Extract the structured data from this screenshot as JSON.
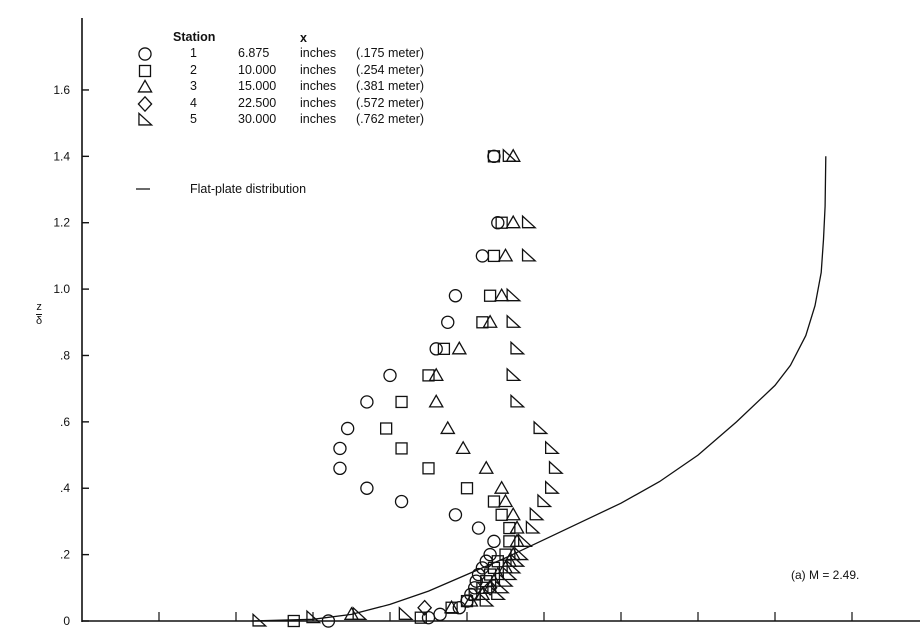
{
  "chart_data": {
    "type": "scatter",
    "title": "",
    "xlabel": "",
    "ylabel_num": "z",
    "ylabel_den": "δ",
    "ylim": [
      0,
      1.6
    ],
    "yticks": [
      "0",
      ".2",
      ".4",
      ".6",
      ".8",
      "1.0",
      "1.2",
      "1.4",
      "1.6"
    ],
    "xlim": [
      0,
      10
    ],
    "grid": false,
    "legend_position": "top-left",
    "legend": {
      "header_station": "Station",
      "header_x": "x",
      "entries": [
        {
          "station": "1",
          "x": "6.875",
          "units": "inches",
          "metric": "(.175  meter)",
          "marker": "circle"
        },
        {
          "station": "2",
          "x": "10.000",
          "units": "inches",
          "metric": "(.254  meter)",
          "marker": "square"
        },
        {
          "station": "3",
          "x": "15.000",
          "units": "inches",
          "metric": "(.381  meter)",
          "marker": "triangle"
        },
        {
          "station": "4",
          "x": "22.500",
          "units": "inches",
          "metric": "(.572  meter)",
          "marker": "diamond"
        },
        {
          "station": "5",
          "x": "30.000",
          "units": "inches",
          "metric": "(.762  meter)",
          "marker": "right-triangle"
        }
      ],
      "line_label": "Flat-plate distribution"
    },
    "annotation": "(a) M = 2.49.",
    "series": [
      {
        "station": "1",
        "marker": "circle",
        "points": [
          [
            3.2,
            0
          ],
          [
            4.5,
            0.01
          ],
          [
            4.65,
            0.02
          ],
          [
            4.9,
            0.04
          ],
          [
            5.0,
            0.06
          ],
          [
            5.05,
            0.08
          ],
          [
            5.1,
            0.1
          ],
          [
            5.12,
            0.12
          ],
          [
            5.15,
            0.14
          ],
          [
            5.2,
            0.16
          ],
          [
            5.25,
            0.18
          ],
          [
            5.3,
            0.2
          ],
          [
            5.35,
            0.24
          ],
          [
            5.15,
            0.28
          ],
          [
            4.85,
            0.32
          ],
          [
            4.15,
            0.36
          ],
          [
            3.7,
            0.4
          ],
          [
            3.35,
            0.46
          ],
          [
            3.35,
            0.52
          ],
          [
            3.45,
            0.58
          ],
          [
            3.7,
            0.66
          ],
          [
            4.0,
            0.74
          ],
          [
            4.6,
            0.82
          ],
          [
            4.75,
            0.9
          ],
          [
            4.85,
            0.98
          ],
          [
            5.2,
            1.1
          ],
          [
            5.4,
            1.2
          ],
          [
            5.35,
            1.4
          ]
        ]
      },
      {
        "station": "2",
        "marker": "square",
        "points": [
          [
            2.75,
            0
          ],
          [
            4.4,
            0.01
          ],
          [
            4.8,
            0.04
          ],
          [
            5.0,
            0.06
          ],
          [
            5.1,
            0.08
          ],
          [
            5.2,
            0.1
          ],
          [
            5.25,
            0.12
          ],
          [
            5.3,
            0.14
          ],
          [
            5.35,
            0.16
          ],
          [
            5.4,
            0.18
          ],
          [
            5.5,
            0.2
          ],
          [
            5.55,
            0.24
          ],
          [
            5.55,
            0.28
          ],
          [
            5.45,
            0.32
          ],
          [
            5.35,
            0.36
          ],
          [
            5.0,
            0.4
          ],
          [
            4.5,
            0.46
          ],
          [
            4.15,
            0.52
          ],
          [
            3.95,
            0.58
          ],
          [
            4.15,
            0.66
          ],
          [
            4.5,
            0.74
          ],
          [
            4.7,
            0.82
          ],
          [
            5.2,
            0.9
          ],
          [
            5.3,
            0.98
          ],
          [
            5.35,
            1.1
          ],
          [
            5.45,
            1.2
          ],
          [
            5.35,
            1.4
          ]
        ]
      },
      {
        "station": "3",
        "marker": "triangle",
        "points": [
          [
            3.5,
            0.02
          ],
          [
            4.8,
            0.04
          ],
          [
            5.05,
            0.06
          ],
          [
            5.2,
            0.08
          ],
          [
            5.3,
            0.1
          ],
          [
            5.35,
            0.12
          ],
          [
            5.4,
            0.14
          ],
          [
            5.5,
            0.16
          ],
          [
            5.55,
            0.18
          ],
          [
            5.6,
            0.2
          ],
          [
            5.65,
            0.24
          ],
          [
            5.65,
            0.28
          ],
          [
            5.6,
            0.32
          ],
          [
            5.5,
            0.36
          ],
          [
            5.45,
            0.4
          ],
          [
            5.25,
            0.46
          ],
          [
            4.95,
            0.52
          ],
          [
            4.75,
            0.58
          ],
          [
            4.6,
            0.66
          ],
          [
            4.6,
            0.74
          ],
          [
            4.9,
            0.82
          ],
          [
            5.3,
            0.9
          ],
          [
            5.45,
            0.98
          ],
          [
            5.5,
            1.1
          ],
          [
            5.6,
            1.2
          ],
          [
            5.6,
            1.4
          ]
        ]
      },
      {
        "station": "4",
        "marker": "diamond",
        "points": [
          [
            4.45,
            0.04
          ],
          [
            5.3,
            0.1
          ]
        ]
      },
      {
        "station": "5",
        "marker": "right-triangle",
        "points": [
          [
            2.3,
            0
          ],
          [
            3.0,
            0.01
          ],
          [
            3.6,
            0.02
          ],
          [
            4.2,
            0.02
          ],
          [
            5.25,
            0.06
          ],
          [
            5.4,
            0.08
          ],
          [
            5.45,
            0.1
          ],
          [
            5.5,
            0.12
          ],
          [
            5.55,
            0.14
          ],
          [
            5.6,
            0.16
          ],
          [
            5.65,
            0.18
          ],
          [
            5.7,
            0.2
          ],
          [
            5.75,
            0.24
          ],
          [
            5.85,
            0.28
          ],
          [
            5.9,
            0.32
          ],
          [
            6.0,
            0.36
          ],
          [
            6.1,
            0.4
          ],
          [
            6.15,
            0.46
          ],
          [
            6.1,
            0.52
          ],
          [
            5.95,
            0.58
          ],
          [
            5.65,
            0.66
          ],
          [
            5.6,
            0.74
          ],
          [
            5.65,
            0.82
          ],
          [
            5.6,
            0.9
          ],
          [
            5.6,
            0.98
          ],
          [
            5.8,
            1.1
          ],
          [
            5.8,
            1.2
          ],
          [
            5.55,
            1.4
          ]
        ]
      }
    ],
    "flat_plate_distribution": [
      [
        2.2,
        0
      ],
      [
        3.0,
        0.005
      ],
      [
        3.5,
        0.02
      ],
      [
        4.0,
        0.05
      ],
      [
        4.5,
        0.09
      ],
      [
        5.0,
        0.14
      ],
      [
        5.5,
        0.19
      ],
      [
        6.0,
        0.245
      ],
      [
        6.5,
        0.3
      ],
      [
        7.0,
        0.355
      ],
      [
        7.5,
        0.42
      ],
      [
        8.0,
        0.5
      ],
      [
        8.5,
        0.6
      ],
      [
        9.0,
        0.71
      ],
      [
        9.2,
        0.77
      ],
      [
        9.4,
        0.86
      ],
      [
        9.52,
        0.95
      ],
      [
        9.6,
        1.05
      ],
      [
        9.63,
        1.15
      ],
      [
        9.65,
        1.25
      ],
      [
        9.66,
        1.4
      ]
    ]
  }
}
